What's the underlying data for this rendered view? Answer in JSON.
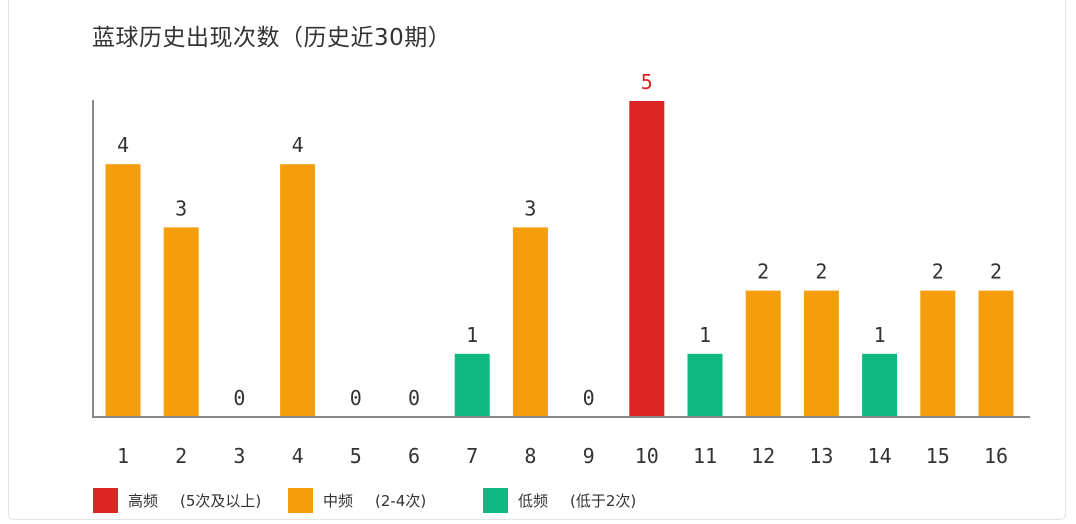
{
  "chart_data": {
    "type": "bar",
    "title": "蓝球历史出现次数（历史近30期）",
    "categories": [
      "1",
      "2",
      "3",
      "4",
      "5",
      "6",
      "7",
      "8",
      "9",
      "10",
      "11",
      "12",
      "13",
      "14",
      "15",
      "16"
    ],
    "values": [
      4,
      3,
      0,
      4,
      0,
      0,
      1,
      3,
      0,
      5,
      1,
      2,
      2,
      1,
      2,
      2
    ],
    "levels": [
      "mid",
      "mid",
      "none",
      "mid",
      "none",
      "none",
      "low",
      "mid",
      "none",
      "high",
      "low",
      "mid",
      "mid",
      "low",
      "mid",
      "mid"
    ],
    "ylim": [
      0,
      5
    ],
    "xlabel": "",
    "ylabel": "",
    "grid": false,
    "legend_position": "bottom-left",
    "colors": {
      "high": "#dc2626",
      "mid": "#f59e0b",
      "low": "#10b981",
      "axis": "#888888",
      "label": "#333333"
    },
    "legend": [
      {
        "key": "high",
        "name": "高频",
        "note": "(5次及以上)"
      },
      {
        "key": "mid",
        "name": "中频",
        "note": "(2-4次)"
      },
      {
        "key": "low",
        "name": "低频",
        "note": "(低于2次)"
      }
    ]
  }
}
